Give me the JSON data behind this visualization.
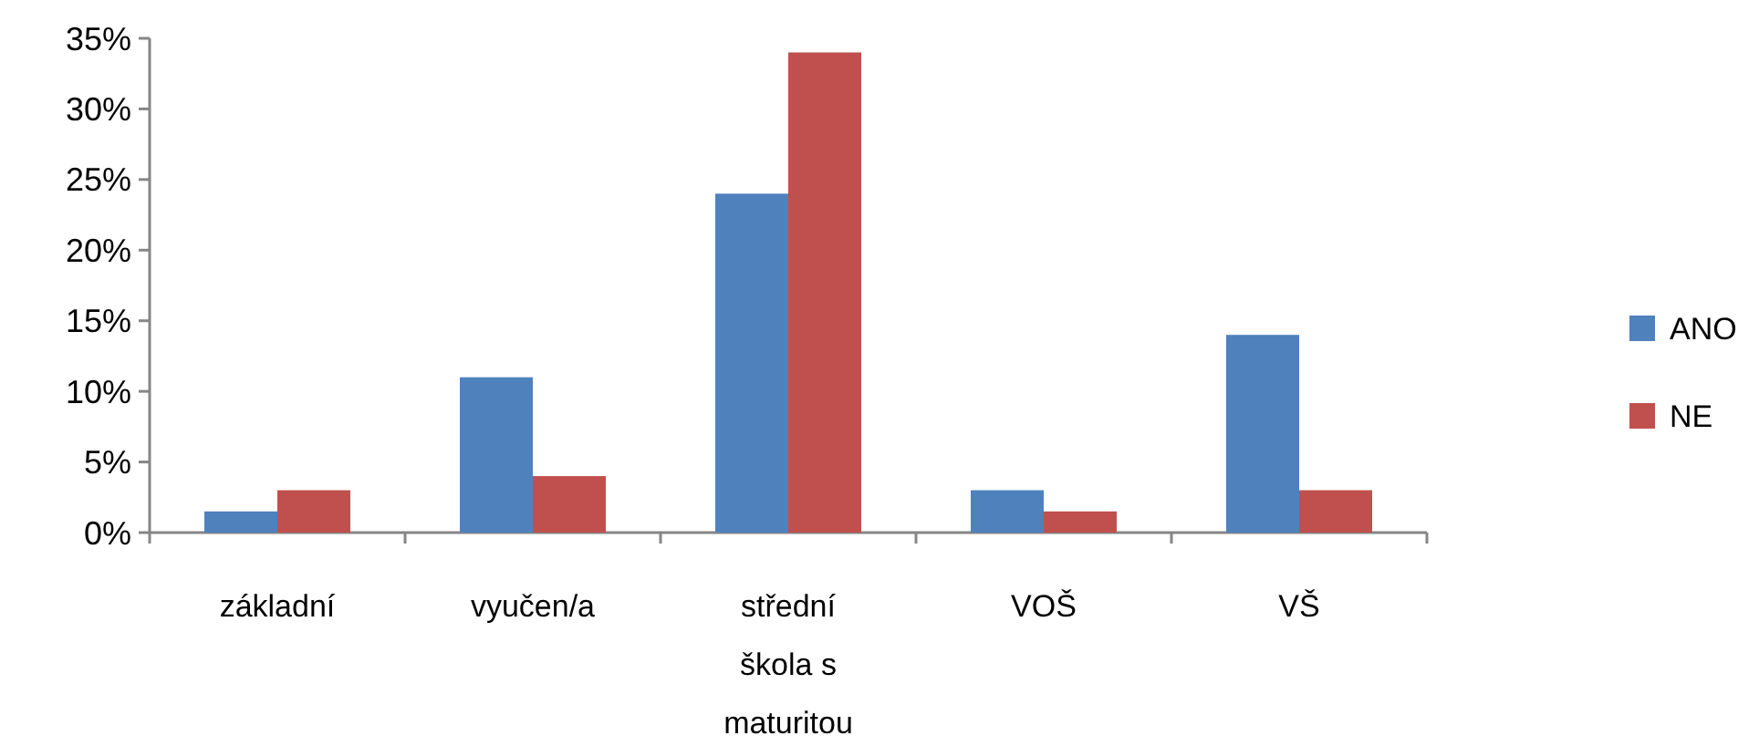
{
  "chart_data": {
    "type": "bar",
    "categories": [
      "základní",
      "vyučen/a",
      "střední škola s maturitou",
      "VOŠ",
      "VŠ"
    ],
    "series": [
      {
        "name": "ANO",
        "color": "#4f81bd",
        "values": [
          1.5,
          11,
          24,
          3,
          14
        ]
      },
      {
        "name": "NE",
        "color": "#c0504d",
        "values": [
          3,
          4,
          34,
          1.5,
          3
        ]
      }
    ],
    "ylim": [
      0,
      35
    ],
    "yticks": [
      {
        "value": 0,
        "label": "0%"
      },
      {
        "value": 5,
        "label": "5%"
      },
      {
        "value": 10,
        "label": "10%"
      },
      {
        "value": 15,
        "label": "15%"
      },
      {
        "value": 20,
        "label": "20%"
      },
      {
        "value": 25,
        "label": "25%"
      },
      {
        "value": 30,
        "label": "30%"
      },
      {
        "value": 35,
        "label": "35%"
      }
    ],
    "grid": false,
    "legend": "right"
  }
}
